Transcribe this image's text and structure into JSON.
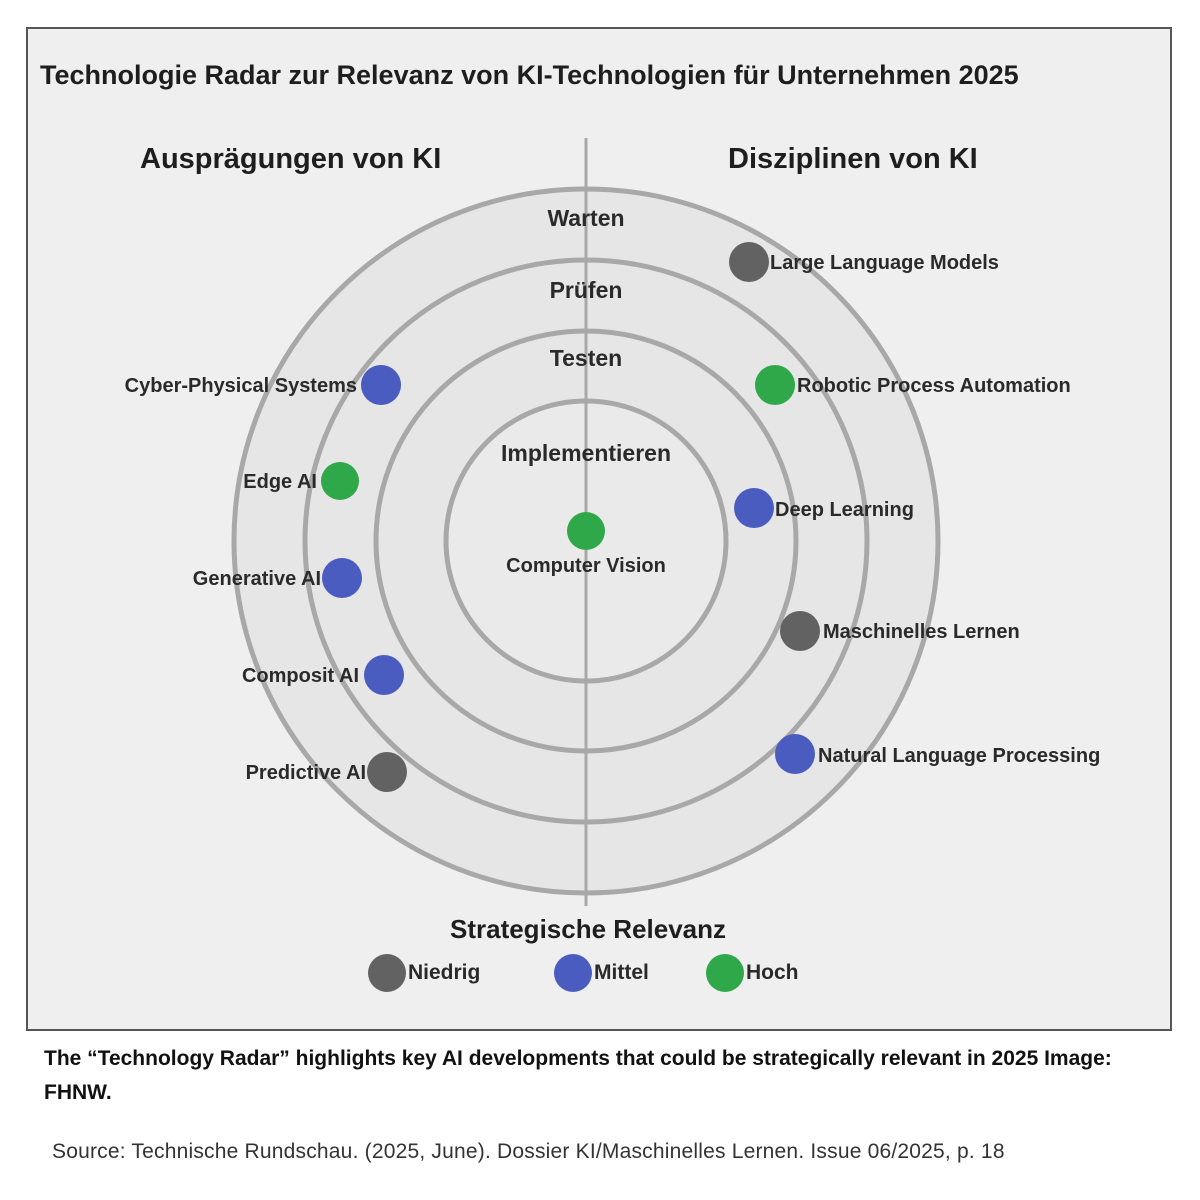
{
  "title": "Technologie Radar zur Relevanz von KI-Technologien für Unternehmen 2025",
  "left_heading": "Ausprägungen von KI",
  "right_heading": "Disziplinen von KI",
  "rings": [
    "Implementieren",
    "Testen",
    "Prüfen",
    "Warten"
  ],
  "colors": {
    "niedrig": "#626262",
    "mittel": "#4a5cbf",
    "hoch": "#2fa84a",
    "ring": "#a8a8a8"
  },
  "items_left": [
    {
      "label": "Cyber-Physical Systems",
      "relevance": "mittel",
      "ring": "Prüfen"
    },
    {
      "label": "Edge AI",
      "relevance": "hoch",
      "ring": "Prüfen"
    },
    {
      "label": "Generative AI",
      "relevance": "mittel",
      "ring": "Prüfen"
    },
    {
      "label": "Composit AI",
      "relevance": "mittel",
      "ring": "Prüfen"
    },
    {
      "label": "Predictive AI",
      "relevance": "niedrig",
      "ring": "Prüfen"
    }
  ],
  "items_center": [
    {
      "label": "Computer Vision",
      "relevance": "hoch",
      "ring": "Implementieren"
    }
  ],
  "items_right": [
    {
      "label": "Large Language Models",
      "relevance": "niedrig",
      "ring": "Warten"
    },
    {
      "label": "Robotic Process Automation",
      "relevance": "hoch",
      "ring": "Prüfen"
    },
    {
      "label": "Deep Learning",
      "relevance": "mittel",
      "ring": "Testen"
    },
    {
      "label": "Maschinelles Lernen",
      "relevance": "niedrig",
      "ring": "Prüfen"
    },
    {
      "label": "Natural Language Processing",
      "relevance": "mittel",
      "ring": "Prüfen"
    }
  ],
  "legend": {
    "title": "Strategische Relevanz",
    "niedrig": "Niedrig",
    "mittel": "Mittel",
    "hoch": "Hoch"
  },
  "caption": "The “Technology Radar” highlights key AI developments that could be strategically relevant in 2025 Image: FHNW.",
  "source": "Source: Technische Rundschau. (2025, June). Dossier KI/Maschinelles Lernen. Issue 06/2025, p. 18"
}
